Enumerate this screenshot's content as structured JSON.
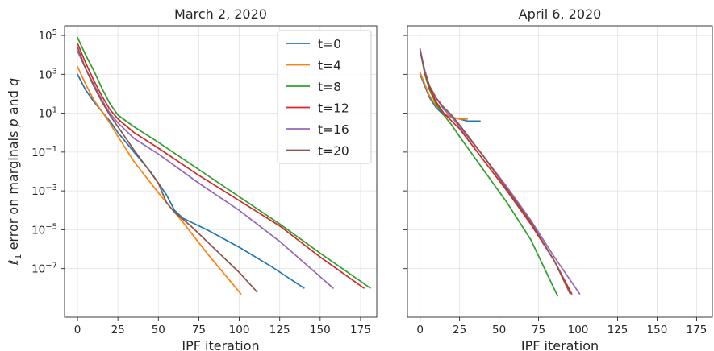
{
  "chart_data": [
    {
      "type": "line",
      "title": "March 2, 2020",
      "xlabel": "IPF iteration",
      "ylabel": "ℓ₁ error on marginals p and q",
      "ylabel_parts": [
        "ℓ",
        "1",
        " error on marginals ",
        "p",
        " and ",
        "q"
      ],
      "yscale": "log",
      "xlim": [
        -8,
        185
      ],
      "ylim_exp": [
        -9.5,
        5.5
      ],
      "xticks": [
        0,
        25,
        50,
        75,
        100,
        125,
        150,
        175
      ],
      "yticks_exp": [
        5,
        3,
        1,
        -1,
        -3,
        -5,
        -7
      ],
      "ytick_base": "10",
      "grid": true,
      "legend": {
        "placement": "top-right",
        "entries": [
          "t=0",
          "t=4",
          "t=8",
          "t=12",
          "t=16",
          "t=20"
        ]
      },
      "series": [
        {
          "name": "t=0",
          "color": "#1f77b4",
          "x": [
            0,
            5,
            10,
            15,
            20,
            25,
            35,
            45,
            55,
            60,
            65,
            80,
            100,
            120,
            140
          ],
          "log10_y": [
            3.0,
            2.2,
            1.6,
            1.1,
            0.6,
            0.0,
            -1.0,
            -2.0,
            -3.2,
            -4.0,
            -4.4,
            -5.0,
            -5.9,
            -6.9,
            -8.0
          ]
        },
        {
          "name": "t=4",
          "color": "#ff7f0e",
          "x": [
            0,
            5,
            10,
            15,
            20,
            25,
            35,
            50,
            65,
            80,
            101
          ],
          "log10_y": [
            3.4,
            2.5,
            1.7,
            1.1,
            0.5,
            -0.2,
            -1.5,
            -3.1,
            -4.6,
            -6.2,
            -8.3
          ]
        },
        {
          "name": "t=8",
          "color": "#2ca02c",
          "x": [
            0,
            5,
            10,
            15,
            20,
            25,
            35,
            50,
            75,
            100,
            125,
            150,
            181
          ],
          "log10_y": [
            4.9,
            4.0,
            3.2,
            2.3,
            1.5,
            0.9,
            0.3,
            -0.5,
            -1.9,
            -3.3,
            -4.7,
            -6.2,
            -8.0
          ]
        },
        {
          "name": "t=12",
          "color": "#d62728",
          "x": [
            0,
            5,
            10,
            15,
            20,
            25,
            35,
            50,
            75,
            100,
            125,
            150,
            177
          ],
          "log10_y": [
            4.6,
            3.6,
            2.7,
            1.9,
            1.2,
            0.7,
            0.0,
            -0.8,
            -2.2,
            -3.5,
            -4.8,
            -6.4,
            -8.0
          ]
        },
        {
          "name": "t=16",
          "color": "#9467bd",
          "x": [
            0,
            5,
            10,
            15,
            20,
            25,
            35,
            50,
            75,
            100,
            125,
            158
          ],
          "log10_y": [
            4.2,
            3.3,
            2.5,
            1.7,
            1.0,
            0.5,
            -0.3,
            -1.1,
            -2.6,
            -4.0,
            -5.6,
            -8.0
          ]
        },
        {
          "name": "t=20",
          "color": "#8c564b",
          "x": [
            0,
            5,
            10,
            15,
            20,
            25,
            35,
            50,
            55,
            60,
            70,
            85,
            100,
            111
          ],
          "log10_y": [
            4.4,
            3.3,
            2.4,
            1.6,
            0.9,
            0.3,
            -0.9,
            -2.6,
            -3.6,
            -4.1,
            -4.8,
            -6.0,
            -7.2,
            -8.2
          ]
        }
      ]
    },
    {
      "type": "line",
      "title": "April 6, 2020",
      "xlabel": "IPF iteration",
      "ylabel": "",
      "yscale": "log",
      "xlim": [
        -8,
        185
      ],
      "ylim_exp": [
        -9.5,
        5.5
      ],
      "xticks": [
        0,
        25,
        50,
        75,
        100,
        125,
        150,
        175
      ],
      "yticks_exp": [
        5,
        3,
        1,
        -1,
        -3,
        -5,
        -7
      ],
      "grid": true,
      "series": [
        {
          "name": "t=0",
          "color": "#1f77b4",
          "x": [
            0,
            3,
            6,
            10,
            15,
            20,
            25,
            30,
            38
          ],
          "log10_y": [
            3.0,
            2.4,
            1.8,
            1.3,
            0.9,
            0.8,
            0.7,
            0.6,
            0.6
          ]
        },
        {
          "name": "t=4",
          "color": "#ff7f0e",
          "x": [
            0,
            3,
            6,
            10,
            15,
            20,
            25,
            30
          ],
          "log10_y": [
            3.1,
            2.5,
            1.9,
            1.4,
            1.0,
            0.8,
            0.7,
            0.7
          ]
        },
        {
          "name": "t=8",
          "color": "#2ca02c",
          "x": [
            0,
            3,
            6,
            10,
            15,
            20,
            25,
            40,
            55,
            70,
            87
          ],
          "log10_y": [
            4.3,
            3.0,
            2.2,
            1.5,
            0.9,
            0.4,
            -0.2,
            -1.9,
            -3.6,
            -5.5,
            -8.4
          ]
        },
        {
          "name": "t=12",
          "color": "#d62728",
          "x": [
            0,
            3,
            6,
            10,
            15,
            20,
            25,
            40,
            55,
            70,
            85,
            96
          ],
          "log10_y": [
            4.3,
            3.1,
            2.3,
            1.6,
            1.0,
            0.6,
            0.2,
            -1.4,
            -3.0,
            -4.7,
            -6.6,
            -8.3
          ]
        },
        {
          "name": "t=16",
          "color": "#9467bd",
          "x": [
            0,
            3,
            6,
            10,
            15,
            20,
            25,
            40,
            55,
            70,
            85,
            101
          ],
          "log10_y": [
            4.3,
            3.2,
            2.4,
            1.8,
            1.2,
            0.8,
            0.3,
            -1.2,
            -2.8,
            -4.5,
            -6.4,
            -8.3
          ]
        },
        {
          "name": "t=20",
          "color": "#8c564b",
          "x": [
            0,
            3,
            6,
            10,
            15,
            20,
            25,
            40,
            55,
            70,
            85,
            95
          ],
          "log10_y": [
            4.2,
            3.1,
            2.4,
            1.8,
            1.3,
            0.9,
            0.4,
            -1.2,
            -2.9,
            -4.6,
            -6.6,
            -8.3
          ]
        }
      ]
    }
  ]
}
